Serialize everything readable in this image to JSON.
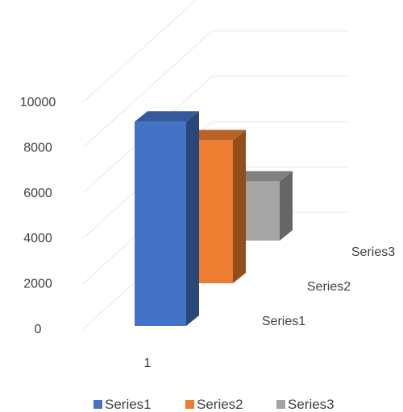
{
  "chart_data": {
    "type": "bar",
    "style": "3d-column",
    "categories": [
      "1"
    ],
    "series": [
      {
        "name": "Series1",
        "values": [
          9000
        ],
        "color": "#4472C4"
      },
      {
        "name": "Series2",
        "values": [
          6300
        ],
        "color": "#ED7D31"
      },
      {
        "name": "Series3",
        "values": [
          2600
        ],
        "color": "#A5A5A5"
      }
    ],
    "y_ticks": [
      "0",
      "2000",
      "4000",
      "6000",
      "8000",
      "10000"
    ],
    "ylim": [
      0,
      10000
    ],
    "grid": true,
    "legend": "bottom",
    "title": "",
    "xlabel": "",
    "ylabel": ""
  }
}
